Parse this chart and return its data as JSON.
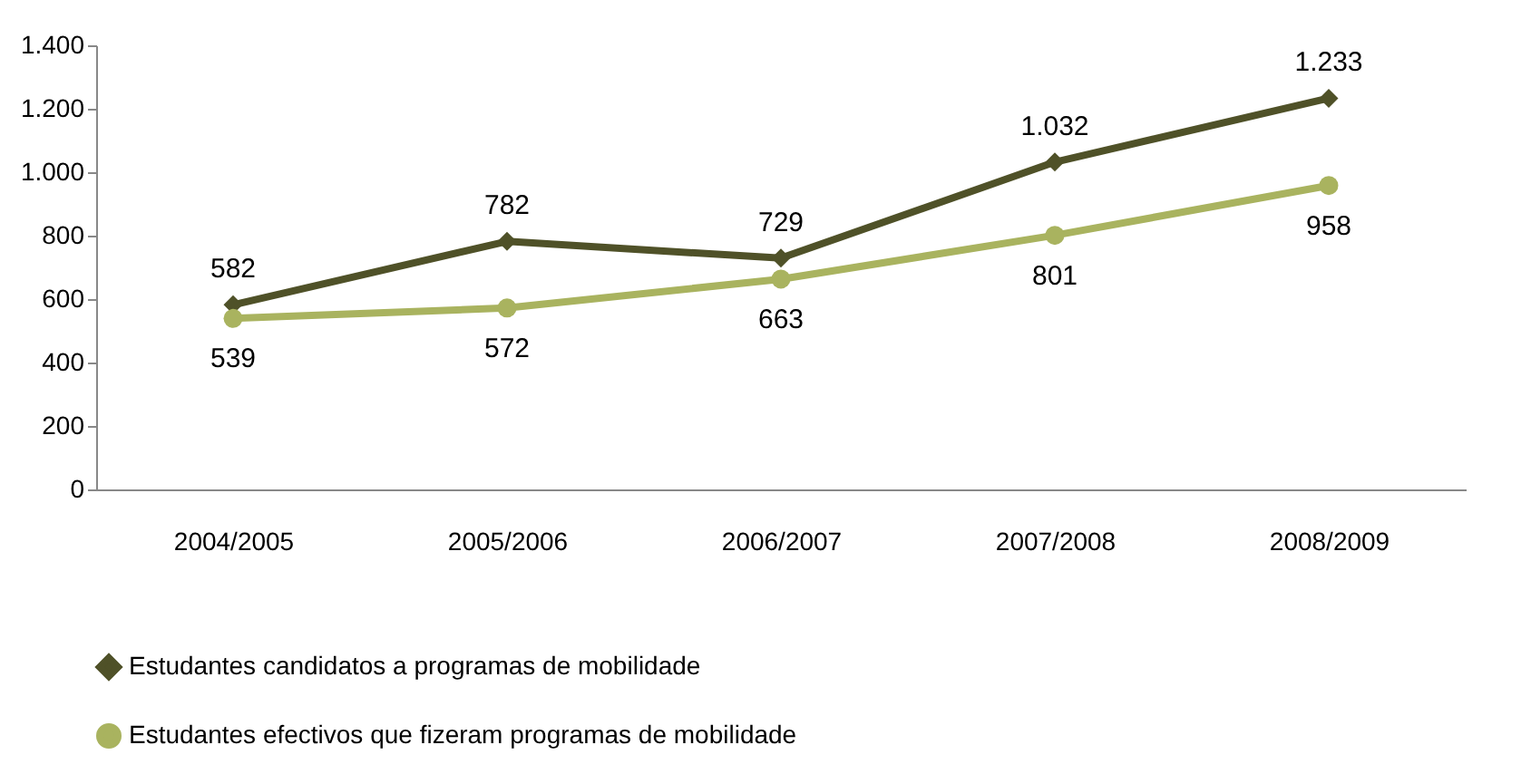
{
  "chart_data": {
    "type": "line",
    "categories": [
      "2004/2005",
      "2005/2006",
      "2006/2007",
      "2007/2008",
      "2008/2009"
    ],
    "series": [
      {
        "name": "Estudantes candidatos a programas de mobilidade",
        "color": "#4f5128",
        "marker": "diamond",
        "values": [
          582,
          782,
          729,
          1032,
          1233
        ],
        "value_labels": [
          "582",
          "782",
          "729",
          "1.032",
          "1.233"
        ]
      },
      {
        "name": "Estudantes efectivos que fizeram programas de mobilidade",
        "color": "#a9b35f",
        "marker": "circle",
        "values": [
          539,
          572,
          663,
          801,
          958
        ],
        "value_labels": [
          "539",
          "572",
          "663",
          "801",
          "958"
        ]
      }
    ],
    "ylim": [
      0,
      1400
    ],
    "yticks": [
      0,
      200,
      400,
      600,
      800,
      {
        "value": 1000,
        "label": "1.000"
      },
      {
        "value": 1200,
        "label": "1.200"
      },
      {
        "value": 1400,
        "label": "1.400"
      }
    ],
    "grid": false,
    "legend": "bottom",
    "line_style": "solid"
  }
}
